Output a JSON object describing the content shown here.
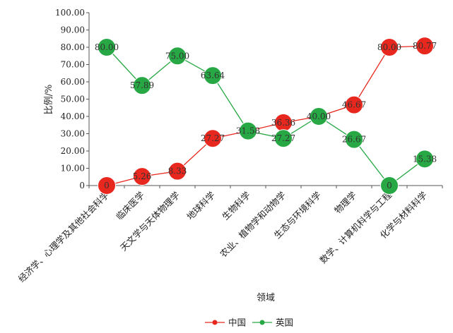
{
  "chart_data": {
    "type": "line",
    "title": "",
    "xlabel": "领域",
    "ylabel": "比例/%",
    "ylim": [
      0,
      100
    ],
    "yticks": [
      "0",
      "10.00",
      "20.00",
      "30.00",
      "40.00",
      "50.00",
      "60.00",
      "70.00",
      "80.00",
      "90.00",
      "100.00"
    ],
    "categories": [
      "经济学、心理学及其他社会科学",
      "临床医学",
      "天文学与天体物理学",
      "地球科学",
      "生物科学",
      "农业、植物学和动物学",
      "生态与环境科学",
      "物理学",
      "数学、计算机科学与工程",
      "化学与材料科学"
    ],
    "series": [
      {
        "name": "中国",
        "color": "#e8281e",
        "values": [
          0,
          5.26,
          8.33,
          27.27,
          31.58,
          36.36,
          40.0,
          46.67,
          80.0,
          80.77
        ],
        "labels": [
          "0",
          "5.26",
          "8.33",
          "27.27",
          "",
          "36.36",
          "40.00",
          "46.67",
          "80.00",
          "80.77"
        ]
      },
      {
        "name": "英国",
        "color": "#27a844",
        "values": [
          80.0,
          57.89,
          75.0,
          63.64,
          31.58,
          27.27,
          40.0,
          26.67,
          0,
          15.38
        ],
        "labels": [
          "80.00",
          "57.89",
          "75.00",
          "63.64",
          "31.58",
          "27.27",
          "",
          "26.67",
          "0",
          "15.38"
        ]
      }
    ],
    "legend": "bottom"
  }
}
